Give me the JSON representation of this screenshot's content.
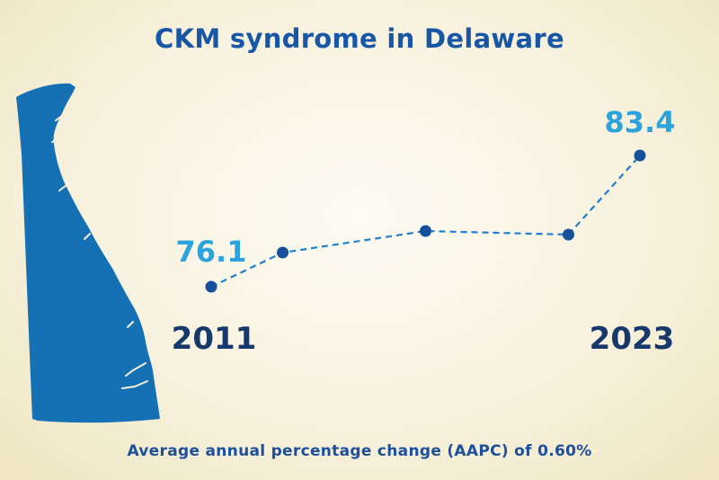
{
  "title": "CKM syndrome in Delaware",
  "footer": "Average annual percentage change (AAPC) of 0.60%",
  "colors": {
    "line": "#1f7fd0",
    "point": "#16509a",
    "value": "#2ba3dc",
    "year": "#17386b",
    "map": "#1570b4"
  },
  "icons": {
    "map": "delaware-state-map-icon"
  },
  "chart_data": {
    "type": "line",
    "title": "CKM syndrome in Delaware",
    "x": [
      2011,
      2013,
      2017,
      2021,
      2023
    ],
    "values": [
      76.1,
      78.0,
      79.2,
      79.0,
      83.4
    ],
    "ylim": [
      74,
      86
    ],
    "xlim": [
      2011,
      2023
    ],
    "labeled_points": [
      {
        "index": 0,
        "label": "76.1"
      },
      {
        "index": 4,
        "label": "83.4"
      }
    ],
    "x_tick_labels": [
      "2011",
      "2023"
    ],
    "line_style": "dashed",
    "grid": false,
    "legend": "none"
  }
}
